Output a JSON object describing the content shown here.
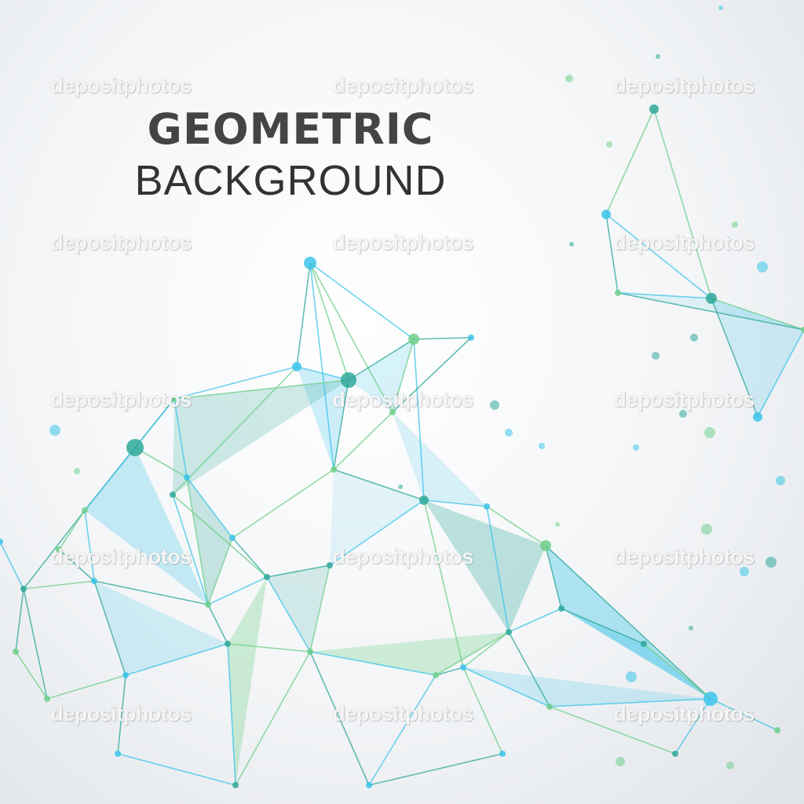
{
  "title": {
    "line1": "GEOMETRIC",
    "line2": "BACKGROUND"
  },
  "watermark": {
    "text": "depositphotos"
  },
  "colors": {
    "blue": "#3cc4ea",
    "green": "#6fcf8a",
    "teal": "#2fa89a",
    "title": "#444444"
  }
}
